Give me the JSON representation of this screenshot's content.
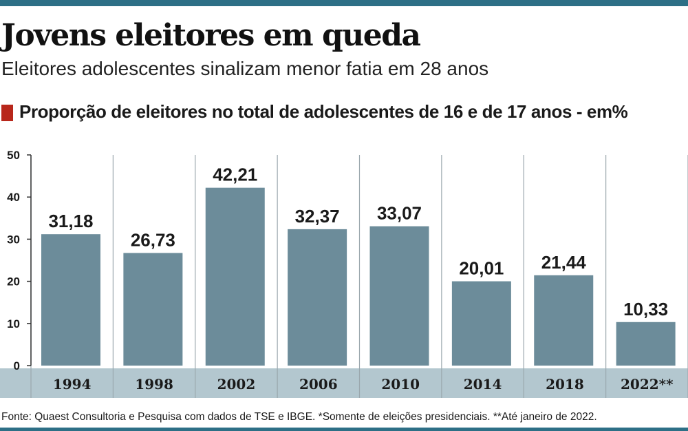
{
  "title": "Jovens eleitores em queda",
  "subtitle": "Eleitores adolescentes sinalizam menor fatia em 28 anos",
  "chart_heading": "Proporção de eleitores no total de adolescentes de 16 e de 17 anos - em%",
  "footnote": "Fonte: Quaest Consultoria e Pesquisa com dados de TSE e IBGE. *Somente de eleições presidenciais. **Até janeiro de 2022.",
  "colors": {
    "bar": "#6c8c9a",
    "x_band": "#b3c7cf",
    "accent_marker": "#b8271b",
    "rule": "#2d6f86"
  },
  "chart_data": {
    "type": "bar",
    "title": "Proporção de eleitores no total de adolescentes de 16 e de 17 anos - em%",
    "xlabel": "",
    "ylabel": "",
    "categories": [
      "1994",
      "1998",
      "2002",
      "2006",
      "2010",
      "2014",
      "2018",
      "2022**"
    ],
    "values": [
      31.18,
      26.73,
      42.21,
      32.37,
      33.07,
      20.01,
      21.44,
      10.33
    ],
    "value_labels": [
      "31,18",
      "26,73",
      "42,21",
      "32,37",
      "33,07",
      "20,01",
      "21,44",
      "10,33"
    ],
    "ylim": [
      0,
      50
    ],
    "yticks": [
      0,
      10,
      20,
      30,
      40,
      50
    ],
    "grid": "vertical",
    "legend": "none"
  }
}
